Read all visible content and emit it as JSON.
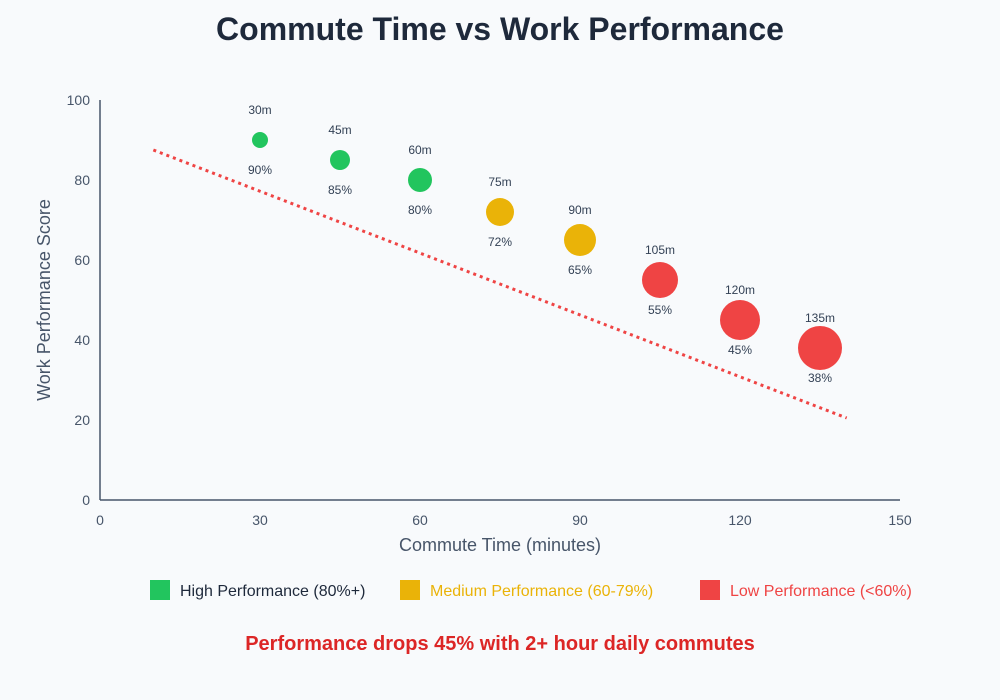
{
  "chart_data": {
    "type": "scatter",
    "title": "Commute Time vs Work Performance",
    "xlabel": "Commute Time (minutes)",
    "ylabel": "Work Performance Score",
    "xlim": [
      0,
      150
    ],
    "ylim": [
      0,
      100
    ],
    "xticks": [
      0,
      30,
      60,
      90,
      120,
      150
    ],
    "yticks": [
      0,
      20,
      40,
      60,
      80,
      100
    ],
    "grid": false,
    "points": [
      {
        "x": 30,
        "y": 90,
        "top_label": "30m",
        "bottom_label": "90%",
        "category": "high"
      },
      {
        "x": 45,
        "y": 85,
        "top_label": "45m",
        "bottom_label": "85%",
        "category": "high"
      },
      {
        "x": 60,
        "y": 80,
        "top_label": "60m",
        "bottom_label": "80%",
        "category": "high"
      },
      {
        "x": 75,
        "y": 72,
        "top_label": "75m",
        "bottom_label": "72%",
        "category": "medium"
      },
      {
        "x": 90,
        "y": 65,
        "top_label": "90m",
        "bottom_label": "65%",
        "category": "medium"
      },
      {
        "x": 105,
        "y": 55,
        "top_label": "105m",
        "bottom_label": "55%",
        "category": "low"
      },
      {
        "x": 120,
        "y": 45,
        "top_label": "120m",
        "bottom_label": "45%",
        "category": "low"
      },
      {
        "x": 135,
        "y": 38,
        "top_label": "135m",
        "bottom_label": "38%",
        "category": "low"
      }
    ],
    "trendline": {
      "from": [
        10,
        87.5
      ],
      "to": [
        140,
        20.5
      ],
      "color": "#ef4444",
      "style": "dotted"
    },
    "legend": {
      "placement": "bottom",
      "entries": [
        {
          "key": "high",
          "label": "High Performance (80%+)",
          "color": "#22c55e",
          "text_color": "#1e293b"
        },
        {
          "key": "medium",
          "label": "Medium Performance (60-79%)",
          "color": "#eab308",
          "text_color": "#eab308"
        },
        {
          "key": "low",
          "label": "Low Performance (<60%)",
          "color": "#ef4444",
          "text_color": "#ef4444"
        }
      ]
    },
    "annotation": "Performance drops 45% with 2+ hour daily commutes"
  }
}
